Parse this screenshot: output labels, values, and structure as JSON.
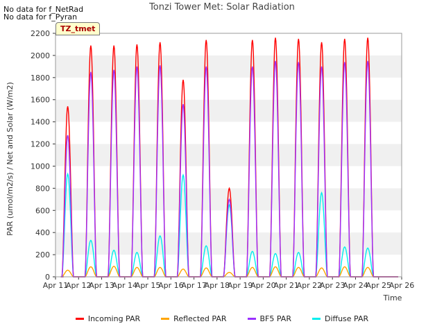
{
  "header": {
    "nodata_lines": [
      "No data for f_NetRad",
      "No data for f_Pyran"
    ],
    "title": "Tonzi Tower Met: Solar Radiation",
    "tag": "TZ_tmet"
  },
  "chart_data": {
    "type": "line",
    "title": "Tonzi Tower Met: Solar Radiation",
    "xlabel": "Time",
    "ylabel": "PAR (umol/m2/s) / Net and Solar (W/m2)",
    "x_ticks": [
      "Apr 11",
      "Apr 12",
      "Apr 13",
      "Apr 14",
      "Apr 15",
      "Apr 16",
      "Apr 17",
      "Apr 18",
      "Apr 19",
      "Apr 20",
      "Apr 21",
      "Apr 22",
      "Apr 23",
      "Apr 24",
      "Apr 25",
      "Apr 26"
    ],
    "xlim": [
      11,
      26
    ],
    "ylim": [
      0,
      2200
    ],
    "y_ticks": [
      0,
      200,
      400,
      600,
      800,
      1000,
      1200,
      1400,
      1600,
      1800,
      2000,
      2200
    ],
    "grid": "horizontal bands",
    "legend_position": "bottom",
    "series": [
      {
        "name": "Incoming PAR",
        "color": "#ff0000",
        "daily_peaks": [
          1540,
          2090,
          2090,
          2100,
          2120,
          1780,
          2140,
          800,
          2140,
          2160,
          2150,
          2120,
          2150,
          2160
        ]
      },
      {
        "name": "Reflected PAR",
        "color": "#ffa500",
        "daily_peaks": [
          60,
          90,
          95,
          85,
          85,
          70,
          80,
          40,
          85,
          90,
          85,
          80,
          90,
          85
        ]
      },
      {
        "name": "BF5 PAR",
        "color": "#9b30ff",
        "daily_peaks": [
          1280,
          1850,
          1870,
          1900,
          1910,
          1560,
          1900,
          700,
          1900,
          1950,
          1940,
          1900,
          1940,
          1950
        ]
      },
      {
        "name": "Diffuse PAR",
        "color": "#00eeee",
        "daily_peaks": [
          930,
          330,
          240,
          220,
          370,
          920,
          280,
          650,
          230,
          210,
          220,
          760,
          270,
          260
        ]
      }
    ]
  }
}
